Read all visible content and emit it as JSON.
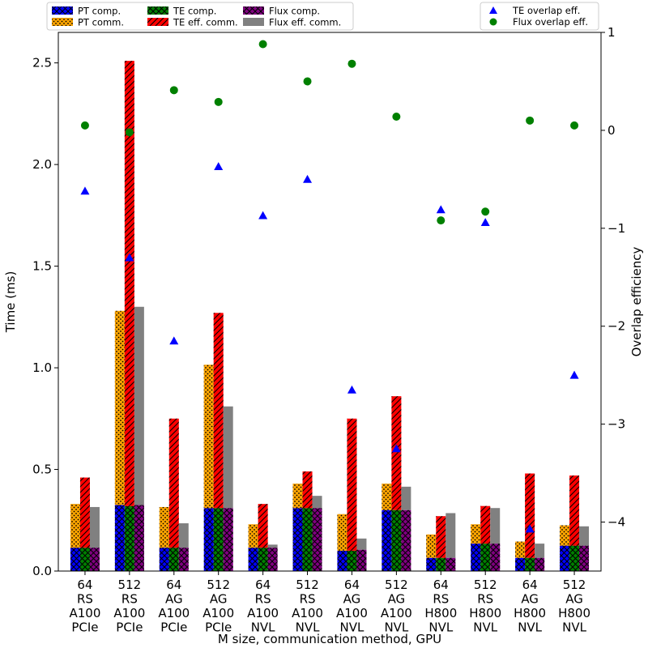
{
  "chart_data": {
    "type": "bar",
    "xlabel": "M size, communication method, GPU",
    "ylabel": "Time (ms)",
    "y2label": "Overlap efficiency",
    "ylim": [
      0,
      2.65
    ],
    "y2lim": [
      -4.5,
      1.0
    ],
    "yticks": [
      "0.0",
      "0.5",
      "1.0",
      "1.5",
      "2.0",
      "2.5"
    ],
    "y2ticks": [
      "1",
      "0",
      "−1",
      "−2",
      "−3",
      "−4"
    ],
    "y2tick_values": [
      1,
      0,
      -1,
      -2,
      -3,
      -4
    ],
    "grid": false,
    "legend_placement": "top-left (bars), top-right (markers)",
    "categories": [
      [
        "64",
        "RS",
        "A100",
        "PCIe"
      ],
      [
        "512",
        "RS",
        "A100",
        "PCIe"
      ],
      [
        "64",
        "AG",
        "A100",
        "PCIe"
      ],
      [
        "512",
        "AG",
        "A100",
        "PCIe"
      ],
      [
        "64",
        "RS",
        "A100",
        "NVL"
      ],
      [
        "512",
        "RS",
        "A100",
        "NVL"
      ],
      [
        "64",
        "AG",
        "A100",
        "NVL"
      ],
      [
        "512",
        "AG",
        "A100",
        "NVL"
      ],
      [
        "64",
        "RS",
        "H800",
        "NVL"
      ],
      [
        "512",
        "RS",
        "H800",
        "NVL"
      ],
      [
        "64",
        "AG",
        "H800",
        "NVL"
      ],
      [
        "512",
        "AG",
        "H800",
        "NVL"
      ]
    ],
    "series": [
      {
        "name": "PT comp.",
        "group": "PT",
        "stack": "bottom",
        "color": "#0000ff",
        "hatch": "crosshatch",
        "values": [
          0.115,
          0.325,
          0.115,
          0.31,
          0.115,
          0.31,
          0.1,
          0.3,
          0.065,
          0.135,
          0.065,
          0.125
        ]
      },
      {
        "name": "PT comm.",
        "group": "PT",
        "stack": "top",
        "color": "#ffa500",
        "hatch": "dots",
        "values": [
          0.215,
          0.955,
          0.2,
          0.705,
          0.115,
          0.12,
          0.18,
          0.13,
          0.115,
          0.095,
          0.08,
          0.1
        ]
      },
      {
        "name": "TE comp.",
        "group": "TE",
        "stack": "bottom",
        "color": "#008000",
        "hatch": "crosshatch",
        "values": [
          0.115,
          0.32,
          0.115,
          0.31,
          0.115,
          0.31,
          0.1,
          0.3,
          0.065,
          0.135,
          0.065,
          0.125
        ]
      },
      {
        "name": "TE eff. comm.",
        "group": "TE",
        "stack": "top",
        "color": "#ff0000",
        "hatch": "diagonal",
        "values": [
          0.345,
          2.19,
          0.635,
          0.96,
          0.215,
          0.18,
          0.65,
          0.56,
          0.205,
          0.185,
          0.415,
          0.345
        ]
      },
      {
        "name": "Flux comp.",
        "group": "Flux",
        "stack": "bottom",
        "color": "#800080",
        "hatch": "crosshatch",
        "values": [
          0.115,
          0.325,
          0.115,
          0.31,
          0.115,
          0.31,
          0.105,
          0.3,
          0.065,
          0.135,
          0.065,
          0.125
        ]
      },
      {
        "name": "Flux eff. comm.",
        "group": "Flux",
        "stack": "top",
        "color": "#808080",
        "hatch": "none",
        "values": [
          0.2,
          0.975,
          0.12,
          0.5,
          0.015,
          0.06,
          0.055,
          0.115,
          0.22,
          0.175,
          0.07,
          0.095
        ]
      }
    ],
    "overlap_series": [
      {
        "name": "TE overlap eff.",
        "marker": "triangle",
        "color": "#0000ff",
        "axis": "right",
        "values": [
          -0.62,
          -1.3,
          -2.15,
          -0.37,
          -0.87,
          -0.5,
          -2.65,
          -3.25,
          -0.81,
          -0.94,
          -4.07,
          -2.5
        ]
      },
      {
        "name": "Flux overlap eff.",
        "marker": "circle",
        "color": "#008000",
        "axis": "right",
        "values": [
          0.05,
          -0.02,
          0.41,
          0.29,
          0.88,
          0.5,
          0.68,
          0.14,
          -0.92,
          -0.83,
          0.1,
          0.05
        ]
      }
    ],
    "legend_left": [
      [
        "PT comp.",
        "TE comp.",
        "Flux comp."
      ],
      [
        "PT comm.",
        "TE eff. comm.",
        "Flux eff. comm."
      ]
    ],
    "legend_right": [
      "TE overlap eff.",
      "Flux overlap eff."
    ]
  }
}
